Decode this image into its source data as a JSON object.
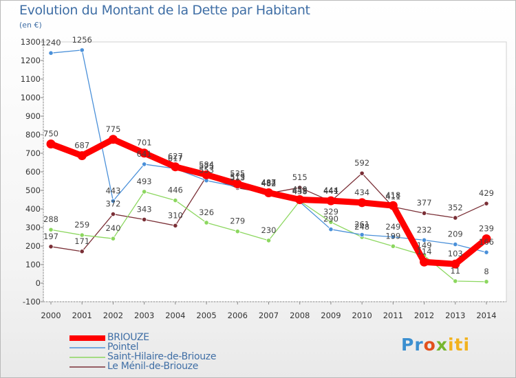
{
  "chart_data": {
    "type": "line",
    "title": "Evolution du Montant de la Dette par Habitant",
    "subtitle": "(en €)",
    "categories": [
      "2000",
      "2001",
      "2002",
      "2003",
      "2004",
      "2005",
      "2006",
      "2007",
      "2008",
      "2009",
      "2010",
      "2011",
      "2012",
      "2013",
      "2014"
    ],
    "ylim": [
      -100,
      1300
    ],
    "yticks": [
      -100,
      0,
      100,
      200,
      300,
      400,
      500,
      600,
      700,
      800,
      900,
      1000,
      1100,
      1200,
      1300
    ],
    "grid": false,
    "legend_position": "bottom-left",
    "series": [
      {
        "name": "BRIOUZE",
        "color": "#ff0000",
        "values": [
          750,
          687,
          775,
          701,
          627,
          584,
          535,
          487,
          450,
          444,
          434,
          418,
          114,
          103,
          239
        ],
        "labels": [
          "750",
          "687",
          "775",
          "701",
          "627",
          "584",
          "535",
          "487",
          "450",
          "444",
          "434",
          "418",
          "114",
          "103",
          "239"
        ]
      },
      {
        "name": "Pointel",
        "color": "#4a90d9",
        "values": [
          1240,
          1256,
          443,
          641,
          617,
          553,
          519,
          482,
          438,
          290,
          261,
          249,
          232,
          209,
          166
        ],
        "labels": [
          "1240",
          "1256",
          "443",
          "641",
          "617",
          "553",
          "519",
          "482",
          "438",
          "290",
          "261",
          "249",
          "232",
          "209",
          "166"
        ]
      },
      {
        "name": "Saint-Hilaire-de-Briouze",
        "color": "#8cd75f",
        "values": [
          288,
          259,
          240,
          493,
          446,
          326,
          279,
          230,
          443,
          329,
          248,
          199,
          149,
          11,
          8
        ],
        "labels": [
          "288",
          "259",
          "240",
          "493",
          "446",
          "326",
          "279",
          "230",
          "443",
          "329",
          "248",
          "199",
          "149",
          "11",
          "8"
        ]
      },
      {
        "name": "Le Ménil-de-Briouze",
        "color": "#7a2f36",
        "values": [
          197,
          171,
          372,
          343,
          310,
          575,
          513,
          484,
          515,
          441,
          592,
          411,
          377,
          352,
          429
        ],
        "labels": [
          "197",
          "171",
          "372",
          "343",
          "310",
          "575",
          "513",
          "484",
          "515",
          "441",
          "592",
          "411",
          "377",
          "352",
          "429"
        ]
      }
    ]
  },
  "logo": {
    "parts": [
      "Pr",
      "o",
      "x",
      "iti"
    ]
  }
}
